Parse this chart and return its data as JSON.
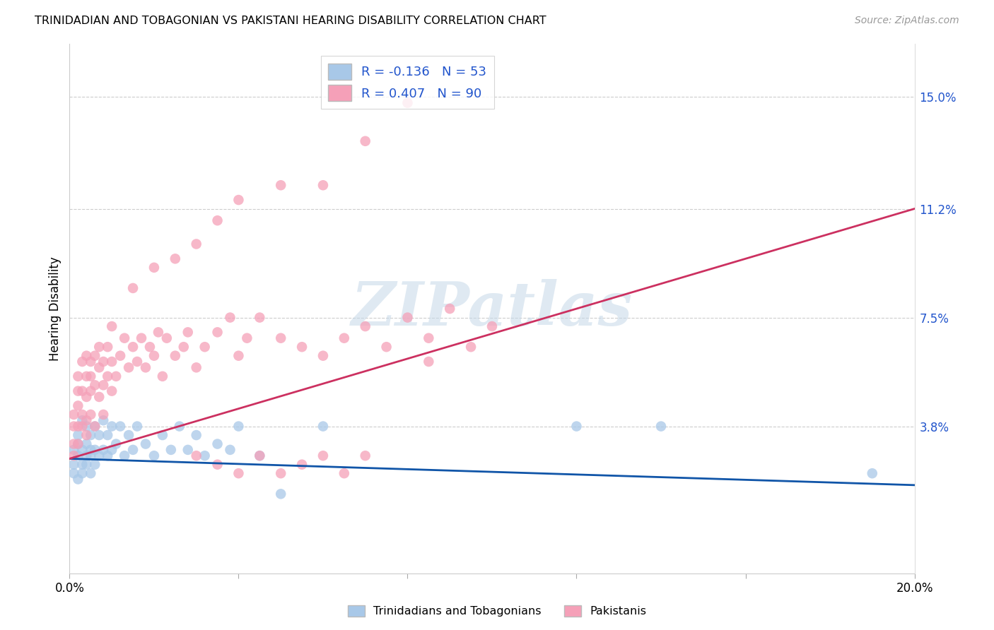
{
  "title": "TRINIDADIAN AND TOBAGONIAN VS PAKISTANI HEARING DISABILITY CORRELATION CHART",
  "source": "Source: ZipAtlas.com",
  "ylabel": "Hearing Disability",
  "xlim": [
    0.0,
    0.2
  ],
  "ylim": [
    -0.012,
    0.168
  ],
  "ytick_values": [
    0.038,
    0.075,
    0.112,
    0.15
  ],
  "ytick_labels": [
    "3.8%",
    "7.5%",
    "11.2%",
    "15.0%"
  ],
  "xtick_positions": [
    0.0,
    0.04,
    0.08,
    0.12,
    0.16,
    0.2
  ],
  "r_trini": -0.136,
  "n_trini": 53,
  "r_pak": 0.407,
  "n_pak": 90,
  "color_trini": "#a8c8e8",
  "color_pak": "#f5a0b8",
  "line_color_trini": "#1055a8",
  "line_color_pak": "#cc3060",
  "legend_text_color": "#2255cc",
  "background_color": "#ffffff",
  "watermark_text": "ZIPatlas",
  "trini_line_x": [
    0.0,
    0.2
  ],
  "trini_line_y": [
    0.027,
    0.018
  ],
  "pak_line_x": [
    0.0,
    0.2
  ],
  "pak_line_y": [
    0.027,
    0.112
  ],
  "trini_x": [
    0.001,
    0.001,
    0.001,
    0.002,
    0.002,
    0.002,
    0.002,
    0.003,
    0.003,
    0.003,
    0.003,
    0.004,
    0.004,
    0.004,
    0.004,
    0.005,
    0.005,
    0.005,
    0.005,
    0.006,
    0.006,
    0.006,
    0.007,
    0.007,
    0.008,
    0.008,
    0.009,
    0.009,
    0.01,
    0.01,
    0.011,
    0.012,
    0.013,
    0.014,
    0.015,
    0.016,
    0.018,
    0.02,
    0.022,
    0.024,
    0.026,
    0.028,
    0.03,
    0.032,
    0.035,
    0.038,
    0.04,
    0.045,
    0.05,
    0.06,
    0.12,
    0.14,
    0.19
  ],
  "trini_y": [
    0.03,
    0.025,
    0.022,
    0.035,
    0.028,
    0.032,
    0.02,
    0.04,
    0.03,
    0.025,
    0.022,
    0.038,
    0.028,
    0.032,
    0.025,
    0.035,
    0.03,
    0.022,
    0.028,
    0.038,
    0.03,
    0.025,
    0.035,
    0.028,
    0.04,
    0.03,
    0.035,
    0.028,
    0.038,
    0.03,
    0.032,
    0.038,
    0.028,
    0.035,
    0.03,
    0.038,
    0.032,
    0.028,
    0.035,
    0.03,
    0.038,
    0.03,
    0.035,
    0.028,
    0.032,
    0.03,
    0.038,
    0.028,
    0.015,
    0.038,
    0.038,
    0.038,
    0.022
  ],
  "pak_x": [
    0.001,
    0.001,
    0.001,
    0.001,
    0.002,
    0.002,
    0.002,
    0.002,
    0.002,
    0.003,
    0.003,
    0.003,
    0.003,
    0.004,
    0.004,
    0.004,
    0.004,
    0.004,
    0.005,
    0.005,
    0.005,
    0.005,
    0.006,
    0.006,
    0.006,
    0.007,
    0.007,
    0.007,
    0.008,
    0.008,
    0.008,
    0.009,
    0.009,
    0.01,
    0.01,
    0.01,
    0.011,
    0.012,
    0.013,
    0.014,
    0.015,
    0.016,
    0.017,
    0.018,
    0.019,
    0.02,
    0.021,
    0.022,
    0.023,
    0.025,
    0.027,
    0.028,
    0.03,
    0.032,
    0.035,
    0.038,
    0.04,
    0.042,
    0.045,
    0.05,
    0.055,
    0.06,
    0.065,
    0.07,
    0.075,
    0.08,
    0.085,
    0.09,
    0.095,
    0.1,
    0.015,
    0.02,
    0.025,
    0.03,
    0.035,
    0.04,
    0.05,
    0.06,
    0.07,
    0.08,
    0.03,
    0.035,
    0.04,
    0.045,
    0.05,
    0.055,
    0.06,
    0.065,
    0.07,
    0.085
  ],
  "pak_y": [
    0.038,
    0.042,
    0.032,
    0.028,
    0.045,
    0.038,
    0.05,
    0.032,
    0.055,
    0.042,
    0.05,
    0.038,
    0.06,
    0.048,
    0.055,
    0.04,
    0.062,
    0.035,
    0.05,
    0.06,
    0.042,
    0.055,
    0.052,
    0.062,
    0.038,
    0.058,
    0.048,
    0.065,
    0.052,
    0.06,
    0.042,
    0.055,
    0.065,
    0.05,
    0.06,
    0.072,
    0.055,
    0.062,
    0.068,
    0.058,
    0.065,
    0.06,
    0.068,
    0.058,
    0.065,
    0.062,
    0.07,
    0.055,
    0.068,
    0.062,
    0.065,
    0.07,
    0.058,
    0.065,
    0.07,
    0.075,
    0.062,
    0.068,
    0.075,
    0.068,
    0.065,
    0.062,
    0.068,
    0.072,
    0.065,
    0.075,
    0.068,
    0.078,
    0.065,
    0.072,
    0.085,
    0.092,
    0.095,
    0.1,
    0.108,
    0.115,
    0.12,
    0.12,
    0.135,
    0.148,
    0.028,
    0.025,
    0.022,
    0.028,
    0.022,
    0.025,
    0.028,
    0.022,
    0.028,
    0.06
  ]
}
